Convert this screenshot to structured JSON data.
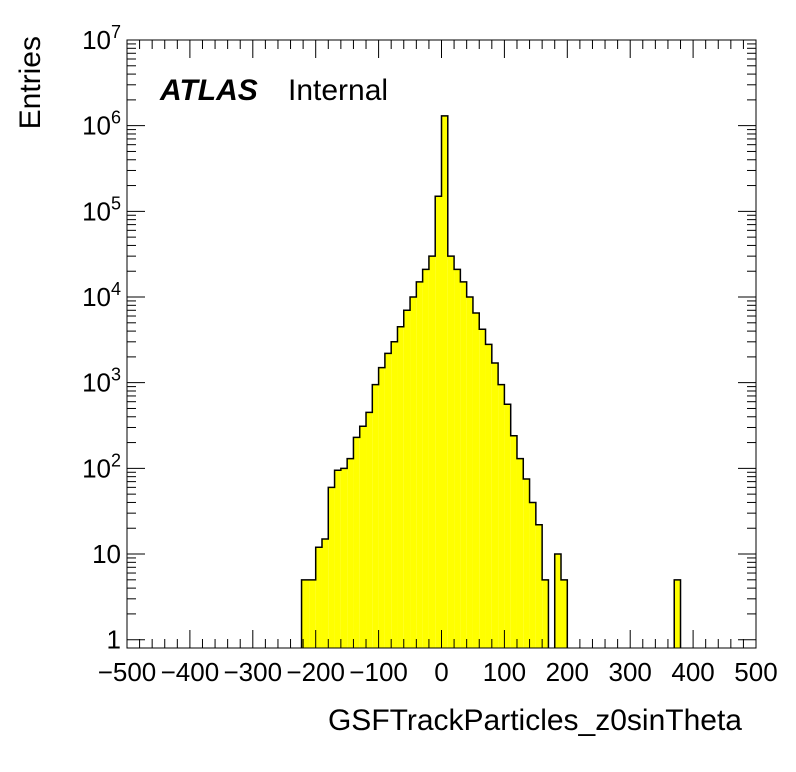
{
  "chart_data": {
    "type": "bar",
    "title": "",
    "xlabel": "GSFTrackParticles_z0sinTheta",
    "ylabel": "Entries",
    "xlim": [
      -500,
      500
    ],
    "ylim": [
      0.8,
      10000000
    ],
    "y_scale": "log",
    "grid": false,
    "legend": "none",
    "bar_color": "#ffff00",
    "edge_color": "#000000",
    "x_ticks": [
      -500,
      -400,
      -300,
      -200,
      -100,
      0,
      100,
      200,
      300,
      400,
      500
    ],
    "x_tick_labels": [
      "−500",
      "−400",
      "−300",
      "−200",
      "−100",
      "0",
      "100",
      "200",
      "300",
      "400",
      "500"
    ],
    "y_ticks": [
      1,
      10,
      100,
      1000,
      10000,
      100000,
      1000000,
      10000000
    ],
    "y_tick_labels": [
      {
        "base": "1",
        "exp": ""
      },
      {
        "base": "10",
        "exp": ""
      },
      {
        "base": "10",
        "exp": "2"
      },
      {
        "base": "10",
        "exp": "3"
      },
      {
        "base": "10",
        "exp": "4"
      },
      {
        "base": "10",
        "exp": "5"
      },
      {
        "base": "10",
        "exp": "6"
      },
      {
        "base": "10",
        "exp": "7"
      }
    ],
    "annotation": {
      "brand": "ATLAS",
      "status": "Internal"
    },
    "bins": [
      {
        "x0": -222.5,
        "x1": -210,
        "y": 5
      },
      {
        "x0": -210,
        "x1": -200,
        "y": 5
      },
      {
        "x0": -200,
        "x1": -190,
        "y": 12
      },
      {
        "x0": -190,
        "x1": -180,
        "y": 15
      },
      {
        "x0": -180,
        "x1": -170,
        "y": 60
      },
      {
        "x0": -170,
        "x1": -160,
        "y": 95
      },
      {
        "x0": -160,
        "x1": -150,
        "y": 100
      },
      {
        "x0": -150,
        "x1": -140,
        "y": 130
      },
      {
        "x0": -140,
        "x1": -130,
        "y": 230
      },
      {
        "x0": -130,
        "x1": -120,
        "y": 310
      },
      {
        "x0": -120,
        "x1": -110,
        "y": 450
      },
      {
        "x0": -110,
        "x1": -100,
        "y": 950
      },
      {
        "x0": -100,
        "x1": -90,
        "y": 1500
      },
      {
        "x0": -90,
        "x1": -80,
        "y": 2200
      },
      {
        "x0": -80,
        "x1": -70,
        "y": 3000
      },
      {
        "x0": -70,
        "x1": -60,
        "y": 4500
      },
      {
        "x0": -60,
        "x1": -50,
        "y": 7000
      },
      {
        "x0": -50,
        "x1": -40,
        "y": 10000
      },
      {
        "x0": -40,
        "x1": -30,
        "y": 15000
      },
      {
        "x0": -30,
        "x1": -20,
        "y": 21000
      },
      {
        "x0": -20,
        "x1": -10,
        "y": 30000
      },
      {
        "x0": -10,
        "x1": 0,
        "y": 150000
      },
      {
        "x0": 0,
        "x1": 10,
        "y": 1300000
      },
      {
        "x0": 10,
        "x1": 20,
        "y": 30000
      },
      {
        "x0": 20,
        "x1": 30,
        "y": 21000
      },
      {
        "x0": 30,
        "x1": 40,
        "y": 15000
      },
      {
        "x0": 40,
        "x1": 50,
        "y": 10000
      },
      {
        "x0": 50,
        "x1": 60,
        "y": 6500
      },
      {
        "x0": 60,
        "x1": 70,
        "y": 4200
      },
      {
        "x0": 70,
        "x1": 80,
        "y": 2800
      },
      {
        "x0": 80,
        "x1": 90,
        "y": 1700
      },
      {
        "x0": 90,
        "x1": 100,
        "y": 950
      },
      {
        "x0": 100,
        "x1": 110,
        "y": 560
      },
      {
        "x0": 110,
        "x1": 120,
        "y": 240
      },
      {
        "x0": 120,
        "x1": 130,
        "y": 130
      },
      {
        "x0": 130,
        "x1": 140,
        "y": 75
      },
      {
        "x0": 140,
        "x1": 150,
        "y": 40
      },
      {
        "x0": 150,
        "x1": 160,
        "y": 22
      },
      {
        "x0": 160,
        "x1": 170,
        "y": 5
      },
      {
        "x0": 180,
        "x1": 190,
        "y": 10
      },
      {
        "x0": 190,
        "x1": 200,
        "y": 5
      },
      {
        "x0": 370,
        "x1": 380,
        "y": 5
      }
    ]
  }
}
